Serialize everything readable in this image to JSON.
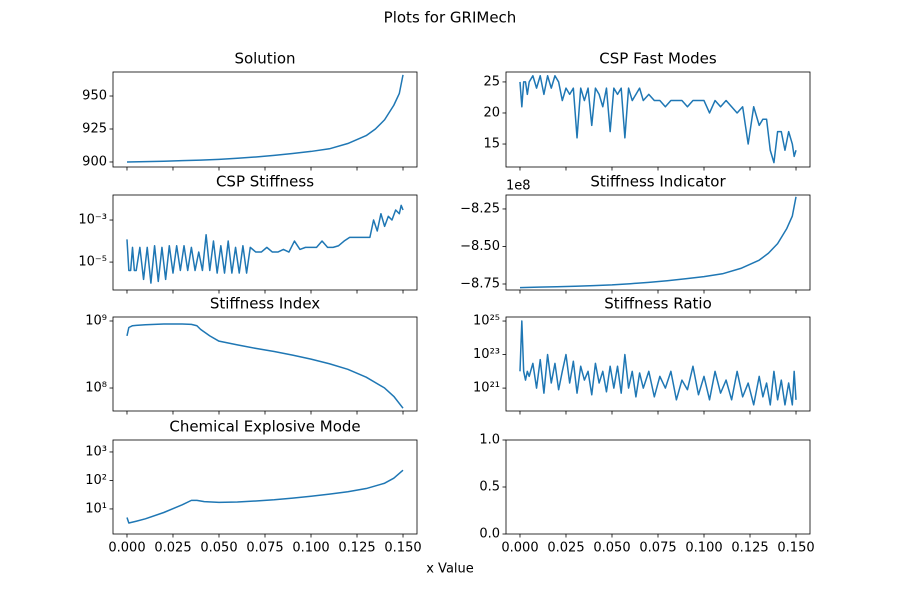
{
  "title": "Plots for GRIMech",
  "xlabel": "x Value",
  "chart_data": [
    {
      "type": "line",
      "title": "Solution",
      "x": [
        0,
        0.01,
        0.02,
        0.03,
        0.04,
        0.05,
        0.06,
        0.07,
        0.08,
        0.09,
        0.1,
        0.11,
        0.12,
        0.13,
        0.135,
        0.14,
        0.145,
        0.148,
        0.15
      ],
      "series": [
        {
          "color": "#1f77b4",
          "values": [
            900,
            900.3,
            900.6,
            901,
            901.4,
            902,
            902.8,
            903.8,
            905,
            906.4,
            908,
            910,
            914,
            920,
            925,
            932,
            943,
            952,
            966
          ]
        }
      ],
      "xlim": [
        -0.0076,
        0.1576
      ],
      "xticks": [
        0,
        0.025,
        0.05,
        0.075,
        0.1,
        0.125,
        0.15
      ],
      "ylim": [
        896.2,
        968.2
      ],
      "yticks": [
        900,
        925,
        950
      ]
    },
    {
      "type": "line",
      "title": "CSP Fast Modes",
      "x": [
        0,
        0.001,
        0.002,
        0.003,
        0.004,
        0.005,
        0.007,
        0.009,
        0.011,
        0.013,
        0.015,
        0.017,
        0.019,
        0.021,
        0.023,
        0.025,
        0.027,
        0.029,
        0.031,
        0.033,
        0.035,
        0.037,
        0.039,
        0.041,
        0.043,
        0.045,
        0.047,
        0.049,
        0.051,
        0.053,
        0.055,
        0.057,
        0.059,
        0.061,
        0.063,
        0.065,
        0.067,
        0.07,
        0.073,
        0.076,
        0.079,
        0.082,
        0.085,
        0.088,
        0.091,
        0.094,
        0.097,
        0.1,
        0.103,
        0.106,
        0.109,
        0.112,
        0.115,
        0.118,
        0.121,
        0.124,
        0.127,
        0.13,
        0.132,
        0.134,
        0.136,
        0.138,
        0.14,
        0.142,
        0.144,
        0.146,
        0.148,
        0.149,
        0.15
      ],
      "series": [
        {
          "color": "#1f77b4",
          "values": [
            25,
            21,
            25,
            25,
            23,
            25,
            26,
            24,
            26,
            23,
            26,
            24,
            26,
            25,
            22,
            24,
            23,
            24,
            16,
            24,
            22,
            24,
            18,
            24,
            23,
            21,
            24,
            17,
            24,
            23,
            24,
            16,
            24,
            22,
            23,
            24,
            22,
            23,
            22,
            22,
            21,
            22,
            22,
            22,
            21,
            22,
            22,
            22,
            20,
            22,
            21,
            22,
            21,
            20,
            21,
            15,
            21,
            18,
            19,
            19,
            14,
            12,
            17,
            17,
            14,
            17,
            15,
            13,
            14
          ]
        }
      ],
      "xlim": [
        -0.0076,
        0.1576
      ],
      "xticks": [
        0,
        0.025,
        0.05,
        0.075,
        0.1,
        0.125,
        0.15
      ],
      "ylim": [
        11.3,
        26.6
      ],
      "yticks": [
        15,
        20,
        25
      ]
    },
    {
      "type": "line",
      "title": "CSP Stiffness",
      "ylog": true,
      "x": [
        0,
        0.001,
        0.002,
        0.003,
        0.004,
        0.005,
        0.007,
        0.009,
        0.011,
        0.013,
        0.015,
        0.017,
        0.019,
        0.021,
        0.023,
        0.025,
        0.027,
        0.029,
        0.031,
        0.033,
        0.035,
        0.037,
        0.039,
        0.041,
        0.043,
        0.045,
        0.047,
        0.049,
        0.051,
        0.053,
        0.055,
        0.057,
        0.059,
        0.061,
        0.063,
        0.065,
        0.067,
        0.07,
        0.073,
        0.076,
        0.079,
        0.082,
        0.085,
        0.088,
        0.091,
        0.094,
        0.097,
        0.1,
        0.103,
        0.106,
        0.109,
        0.112,
        0.115,
        0.118,
        0.121,
        0.124,
        0.127,
        0.13,
        0.132,
        0.134,
        0.136,
        0.138,
        0.14,
        0.142,
        0.144,
        0.146,
        0.148,
        0.149,
        0.15
      ],
      "series": [
        {
          "color": "#1f77b4",
          "values": [
            0.00012,
            4e-06,
            4e-06,
            5e-05,
            4e-06,
            4e-06,
            5e-05,
            1.5e-06,
            5e-05,
            1e-06,
            6e-05,
            1.2e-06,
            5e-05,
            1.5e-06,
            6e-05,
            3e-06,
            6e-05,
            4e-06,
            6e-05,
            4e-06,
            5e-05,
            4e-06,
            3e-05,
            4e-06,
            0.0002,
            4e-06,
            0.0001,
            3e-06,
            6e-05,
            3e-06,
            0.0001,
            3e-06,
            5e-05,
            3e-06,
            6e-05,
            3e-06,
            5e-05,
            3e-05,
            3e-05,
            5e-05,
            3e-05,
            3e-05,
            4e-05,
            3e-05,
            0.0001,
            4e-05,
            5e-05,
            5e-05,
            5e-05,
            0.0001,
            5e-05,
            5e-05,
            6e-05,
            0.0001,
            0.00015,
            0.00015,
            0.00015,
            0.00015,
            0.00015,
            0.001,
            0.0003,
            0.002,
            0.0005,
            0.0015,
            0.001,
            0.003,
            0.002,
            0.005,
            0.003
          ]
        }
      ],
      "xlim": [
        -0.0076,
        0.1576
      ],
      "xticks": [
        0,
        0.025,
        0.05,
        0.075,
        0.1,
        0.125,
        0.15
      ],
      "ylim": [
        4.7e-07,
        0.0155
      ],
      "yticks": [
        {
          "value": 1e-05,
          "label": "10⁻⁵"
        },
        {
          "value": 0.001,
          "label": "10⁻³"
        }
      ]
    },
    {
      "type": "line",
      "title": "Stiffness Indicator",
      "y_offset_text": "1e8",
      "x": [
        0,
        0.01,
        0.02,
        0.03,
        0.04,
        0.05,
        0.06,
        0.07,
        0.08,
        0.09,
        0.1,
        0.11,
        0.12,
        0.13,
        0.135,
        0.14,
        0.145,
        0.148,
        0.15
      ],
      "series": [
        {
          "color": "#1f77b4",
          "values": [
            -8.774,
            -8.771,
            -8.768,
            -8.765,
            -8.761,
            -8.756,
            -8.748,
            -8.739,
            -8.728,
            -8.715,
            -8.701,
            -8.682,
            -8.646,
            -8.591,
            -8.545,
            -8.481,
            -8.38,
            -8.297,
            -8.169
          ]
        }
      ],
      "xlim": [
        -0.0076,
        0.1576
      ],
      "xticks": [
        0,
        0.025,
        0.05,
        0.075,
        0.1,
        0.125,
        0.15
      ],
      "ylim": [
        -8.79,
        -8.157
      ],
      "yticks": [
        {
          "value": -8.75,
          "label": "−8.75"
        },
        {
          "value": -8.5,
          "label": "−8.50"
        },
        {
          "value": -8.25,
          "label": "−8.25"
        }
      ]
    },
    {
      "type": "line",
      "title": "Stiffness Index",
      "ylog": true,
      "x": [
        0,
        0.001,
        0.003,
        0.005,
        0.01,
        0.02,
        0.03,
        0.035,
        0.038,
        0.04,
        0.045,
        0.05,
        0.06,
        0.07,
        0.08,
        0.09,
        0.1,
        0.11,
        0.12,
        0.13,
        0.14,
        0.145,
        0.15
      ],
      "series": [
        {
          "color": "#1f77b4",
          "values": [
            600000000.0,
            800000000.0,
            850000000.0,
            860000000.0,
            880000000.0,
            900000000.0,
            900000000.0,
            890000000.0,
            850000000.0,
            750000000.0,
            600000000.0,
            500000000.0,
            440000000.0,
            390000000.0,
            350000000.0,
            310000000.0,
            270000000.0,
            230000000.0,
            190000000.0,
            145000000.0,
            100000000.0,
            75000000.0,
            50000000.0
          ]
        }
      ],
      "xlim": [
        -0.0076,
        0.1576
      ],
      "xticks": [
        0,
        0.025,
        0.05,
        0.075,
        0.1,
        0.125,
        0.15
      ],
      "ylim": [
        45400000.0,
        1147000000.0
      ],
      "yticks": [
        {
          "value": 100000000,
          "label": "10⁸"
        },
        {
          "value": 1000000000,
          "label": "10⁹"
        }
      ]
    },
    {
      "type": "line",
      "title": "Stiffness Ratio",
      "ylog": true,
      "x": [
        0,
        0.001,
        0.002,
        0.003,
        0.004,
        0.005,
        0.007,
        0.009,
        0.011,
        0.013,
        0.015,
        0.017,
        0.019,
        0.021,
        0.023,
        0.025,
        0.027,
        0.029,
        0.031,
        0.033,
        0.035,
        0.037,
        0.039,
        0.041,
        0.043,
        0.045,
        0.047,
        0.049,
        0.051,
        0.053,
        0.055,
        0.057,
        0.059,
        0.061,
        0.063,
        0.065,
        0.067,
        0.07,
        0.073,
        0.076,
        0.079,
        0.082,
        0.085,
        0.088,
        0.091,
        0.094,
        0.097,
        0.1,
        0.103,
        0.106,
        0.109,
        0.112,
        0.115,
        0.118,
        0.121,
        0.124,
        0.127,
        0.13,
        0.132,
        0.134,
        0.136,
        0.138,
        0.14,
        0.142,
        0.144,
        0.146,
        0.148,
        0.149,
        0.15
      ],
      "series": [
        {
          "color": "#1f77b4",
          "values": [
            1e+22,
            1e+25,
            1e+22,
            3e+21,
            1e+22,
            5e+21,
            3e+22,
            1e+21,
            5e+22,
            5e+20,
            1e+23,
            2e+21,
            3e+22,
            8e+20,
            1e+22,
            1e+23,
            2e+21,
            4e+22,
            5e+20,
            2e+22,
            3e+21,
            1e+22,
            4e+20,
            3e+22,
            2e+21,
            1e+22,
            6e+20,
            2e+22,
            1e+21,
            2e+22,
            5e+20,
            1e+23,
            1e+21,
            1e+22,
            3e+20,
            8e+21,
            1e+21,
            1e+22,
            3e+20,
            5e+21,
            1e+21,
            1e+22,
            2e+20,
            3e+21,
            8e+20,
            2e+22,
            4e+20,
            5e+21,
            2e+20,
            1e+22,
            5e+20,
            3e+21,
            2e+20,
            1e+22,
            3e+20,
            2e+21,
            1e+20,
            5e+21,
            3e+20,
            2e+21,
            1e+20,
            1e+22,
            2e+20,
            3e+21,
            1e+20,
            2e+21,
            1e+20,
            1e+22,
            2e+20
          ]
        }
      ],
      "xlim": [
        -0.0076,
        0.1576
      ],
      "xticks": [
        0,
        0.025,
        0.05,
        0.075,
        0.1,
        0.125,
        0.15
      ],
      "ylim": [
        4.3e+19,
        1.74e+25
      ],
      "yticks": [
        {
          "value": 1e+21,
          "label": "10²¹"
        },
        {
          "value": 1e+23,
          "label": "10²³"
        },
        {
          "value": 1e+25,
          "label": "10²⁵"
        }
      ]
    },
    {
      "type": "line",
      "title": "Chemical Explosive Mode",
      "ylog": true,
      "x": [
        0,
        0.001,
        0.005,
        0.01,
        0.02,
        0.03,
        0.035,
        0.038,
        0.042,
        0.05,
        0.06,
        0.07,
        0.08,
        0.09,
        0.1,
        0.11,
        0.12,
        0.13,
        0.14,
        0.145,
        0.15
      ],
      "series": [
        {
          "color": "#1f77b4",
          "values": [
            5,
            3.2,
            3.7,
            4.5,
            7.5,
            14,
            20,
            20,
            18,
            17,
            17.5,
            19,
            21,
            24,
            28,
            33,
            40,
            52,
            80,
            120,
            230
          ]
        }
      ],
      "xlim": [
        -0.0076,
        0.1576
      ],
      "xticks": [
        {
          "value": 0,
          "label": "0.000"
        },
        {
          "value": 0.025,
          "label": "0.025"
        },
        {
          "value": 0.05,
          "label": "0.050"
        },
        {
          "value": 0.075,
          "label": "0.075"
        },
        {
          "value": 0.1,
          "label": "0.100"
        },
        {
          "value": 0.125,
          "label": "0.125"
        },
        {
          "value": 0.15,
          "label": "0.150"
        }
      ],
      "ylim": [
        1.32,
        2630
      ],
      "yticks": [
        {
          "value": 10,
          "label": "10¹"
        },
        {
          "value": 100,
          "label": "10²"
        },
        {
          "value": 1000,
          "label": "10³"
        }
      ]
    },
    {
      "type": "line",
      "series": [],
      "xlim": [
        -0.0076,
        0.1576
      ],
      "xticks": [
        {
          "value": 0,
          "label": "0.000"
        },
        {
          "value": 0.025,
          "label": "0.025"
        },
        {
          "value": 0.05,
          "label": "0.050"
        },
        {
          "value": 0.075,
          "label": "0.075"
        },
        {
          "value": 0.1,
          "label": "0.100"
        },
        {
          "value": 0.125,
          "label": "0.125"
        },
        {
          "value": 0.15,
          "label": "0.150"
        }
      ],
      "ylim": [
        0,
        1
      ],
      "yticks": [
        {
          "value": 0,
          "label": "0.0"
        },
        {
          "value": 0.5,
          "label": "0.5"
        },
        {
          "value": 1,
          "label": "1.0"
        }
      ]
    }
  ]
}
